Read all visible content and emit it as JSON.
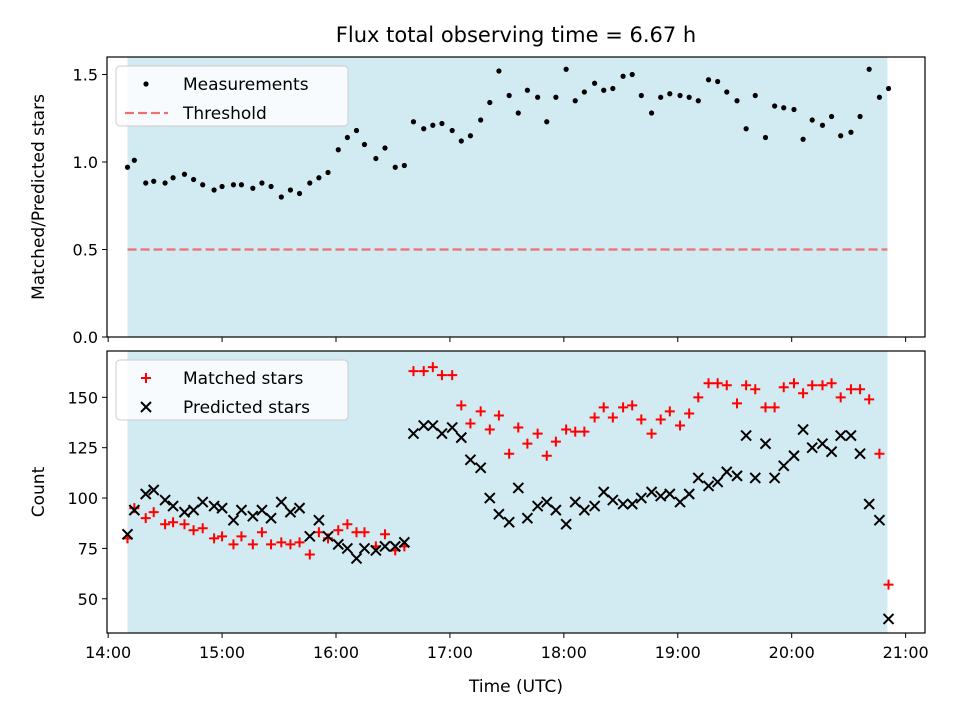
{
  "figure": {
    "title": "Flux total observing time = 6.67 h",
    "xlabel": "Time (UTC)",
    "x_unit": "hours UTC",
    "x_range": [
      13.99,
      21.17
    ],
    "x_ticks": [
      {
        "value": 14,
        "label": "14:00"
      },
      {
        "value": 15,
        "label": "15:00"
      },
      {
        "value": 16,
        "label": "16:00"
      },
      {
        "value": 17,
        "label": "17:00"
      },
      {
        "value": 18,
        "label": "18:00"
      },
      {
        "value": 19,
        "label": "19:00"
      },
      {
        "value": 20,
        "label": "20:00"
      },
      {
        "value": 21,
        "label": "21:00"
      }
    ],
    "shaded_span": {
      "start": 14.17,
      "end": 20.84,
      "color": "#add8e6"
    }
  },
  "chart_data": [
    {
      "type": "scatter",
      "ylabel": "Matched/Predicted stars",
      "ylim": [
        0.0,
        1.6
      ],
      "y_ticks": [
        "0.0",
        "0.5",
        "1.0",
        "1.5"
      ],
      "legend_placement": "upper-left",
      "series": [
        {
          "name": "Measurements",
          "marker": "dot",
          "color": "#000000",
          "points": [
            [
              14.17,
              0.97
            ],
            [
              14.23,
              1.01
            ],
            [
              14.33,
              0.88
            ],
            [
              14.4,
              0.89
            ],
            [
              14.5,
              0.88
            ],
            [
              14.57,
              0.91
            ],
            [
              14.67,
              0.93
            ],
            [
              14.75,
              0.9
            ],
            [
              14.83,
              0.87
            ],
            [
              14.93,
              0.84
            ],
            [
              15.0,
              0.86
            ],
            [
              15.1,
              0.87
            ],
            [
              15.17,
              0.87
            ],
            [
              15.27,
              0.85
            ],
            [
              15.35,
              0.88
            ],
            [
              15.43,
              0.86
            ],
            [
              15.52,
              0.8
            ],
            [
              15.6,
              0.84
            ],
            [
              15.68,
              0.82
            ],
            [
              15.77,
              0.88
            ],
            [
              15.85,
              0.91
            ],
            [
              15.93,
              0.94
            ],
            [
              16.02,
              1.07
            ],
            [
              16.1,
              1.14
            ],
            [
              16.18,
              1.18
            ],
            [
              16.25,
              1.1
            ],
            [
              16.35,
              1.02
            ],
            [
              16.43,
              1.08
            ],
            [
              16.52,
              0.97
            ],
            [
              16.6,
              0.98
            ],
            [
              16.68,
              1.23
            ],
            [
              16.77,
              1.19
            ],
            [
              16.85,
              1.21
            ],
            [
              16.93,
              1.22
            ],
            [
              17.02,
              1.18
            ],
            [
              17.1,
              1.12
            ],
            [
              17.18,
              1.15
            ],
            [
              17.27,
              1.24
            ],
            [
              17.35,
              1.34
            ],
            [
              17.43,
              1.52
            ],
            [
              17.52,
              1.38
            ],
            [
              17.6,
              1.28
            ],
            [
              17.68,
              1.41
            ],
            [
              17.77,
              1.37
            ],
            [
              17.85,
              1.23
            ],
            [
              17.93,
              1.37
            ],
            [
              18.02,
              1.53
            ],
            [
              18.1,
              1.35
            ],
            [
              18.18,
              1.4
            ],
            [
              18.27,
              1.45
            ],
            [
              18.35,
              1.41
            ],
            [
              18.43,
              1.42
            ],
            [
              18.52,
              1.49
            ],
            [
              18.6,
              1.5
            ],
            [
              18.68,
              1.38
            ],
            [
              18.77,
              1.28
            ],
            [
              18.85,
              1.37
            ],
            [
              18.93,
              1.39
            ],
            [
              19.02,
              1.38
            ],
            [
              19.1,
              1.37
            ],
            [
              19.18,
              1.35
            ],
            [
              19.27,
              1.47
            ],
            [
              19.35,
              1.46
            ],
            [
              19.43,
              1.4
            ],
            [
              19.52,
              1.35
            ],
            [
              19.6,
              1.19
            ],
            [
              19.68,
              1.38
            ],
            [
              19.77,
              1.14
            ],
            [
              19.85,
              1.32
            ],
            [
              19.93,
              1.31
            ],
            [
              20.02,
              1.3
            ],
            [
              20.1,
              1.13
            ],
            [
              20.18,
              1.24
            ],
            [
              20.27,
              1.21
            ],
            [
              20.35,
              1.26
            ],
            [
              20.43,
              1.15
            ],
            [
              20.52,
              1.17
            ],
            [
              20.6,
              1.26
            ],
            [
              20.68,
              1.53
            ],
            [
              20.77,
              1.37
            ],
            [
              20.85,
              1.42
            ]
          ]
        },
        {
          "name": "Threshold",
          "marker": "dashed-line",
          "color": "#f07070",
          "points": [
            [
              14.17,
              0.5
            ],
            [
              20.84,
              0.5
            ]
          ]
        }
      ]
    },
    {
      "type": "scatter",
      "ylabel": "Count",
      "ylim": [
        33,
        173
      ],
      "y_ticks": [
        "50",
        "75",
        "100",
        "125",
        "150"
      ],
      "legend_placement": "upper-left",
      "series": [
        {
          "name": "Matched stars",
          "marker": "plus",
          "color": "#ff0000",
          "points": [
            [
              14.17,
              80
            ],
            [
              14.23,
              95
            ],
            [
              14.33,
              90
            ],
            [
              14.4,
              93
            ],
            [
              14.5,
              87
            ],
            [
              14.57,
              88
            ],
            [
              14.67,
              87
            ],
            [
              14.75,
              84
            ],
            [
              14.83,
              85
            ],
            [
              14.93,
              80
            ],
            [
              15.0,
              81
            ],
            [
              15.1,
              77
            ],
            [
              15.17,
              81
            ],
            [
              15.27,
              77
            ],
            [
              15.35,
              83
            ],
            [
              15.43,
              77
            ],
            [
              15.52,
              78
            ],
            [
              15.6,
              77
            ],
            [
              15.68,
              78
            ],
            [
              15.77,
              72
            ],
            [
              15.85,
              83
            ],
            [
              15.93,
              80
            ],
            [
              16.02,
              84
            ],
            [
              16.1,
              87
            ],
            [
              16.18,
              83
            ],
            [
              16.25,
              83
            ],
            [
              16.35,
              76
            ],
            [
              16.43,
              82
            ],
            [
              16.52,
              74
            ],
            [
              16.6,
              76
            ],
            [
              16.68,
              163
            ],
            [
              16.77,
              163
            ],
            [
              16.85,
              165
            ],
            [
              16.93,
              161
            ],
            [
              17.02,
              161
            ],
            [
              17.1,
              146
            ],
            [
              17.18,
              137
            ],
            [
              17.27,
              143
            ],
            [
              17.35,
              134
            ],
            [
              17.43,
              141
            ],
            [
              17.52,
              122
            ],
            [
              17.6,
              135
            ],
            [
              17.68,
              127
            ],
            [
              17.77,
              132
            ],
            [
              17.85,
              121
            ],
            [
              17.93,
              128
            ],
            [
              18.02,
              134
            ],
            [
              18.1,
              133
            ],
            [
              18.18,
              133
            ],
            [
              18.27,
              140
            ],
            [
              18.35,
              145
            ],
            [
              18.43,
              140
            ],
            [
              18.52,
              145
            ],
            [
              18.6,
              146
            ],
            [
              18.68,
              139
            ],
            [
              18.77,
              132
            ],
            [
              18.85,
              139
            ],
            [
              18.93,
              143
            ],
            [
              19.02,
              136
            ],
            [
              19.1,
              142
            ],
            [
              19.18,
              150
            ],
            [
              19.27,
              157
            ],
            [
              19.35,
              157
            ],
            [
              19.43,
              156
            ],
            [
              19.52,
              147
            ],
            [
              19.6,
              156
            ],
            [
              19.68,
              154
            ],
            [
              19.77,
              145
            ],
            [
              19.85,
              145
            ],
            [
              19.93,
              155
            ],
            [
              20.02,
              157
            ],
            [
              20.1,
              152
            ],
            [
              20.18,
              156
            ],
            [
              20.27,
              156
            ],
            [
              20.35,
              157
            ],
            [
              20.43,
              150
            ],
            [
              20.52,
              154
            ],
            [
              20.6,
              154
            ],
            [
              20.68,
              149
            ],
            [
              20.77,
              122
            ],
            [
              20.85,
              57
            ]
          ]
        },
        {
          "name": "Predicted stars",
          "marker": "x",
          "color": "#000000",
          "points": [
            [
              14.17,
              82
            ],
            [
              14.23,
              94
            ],
            [
              14.33,
              102
            ],
            [
              14.4,
              104
            ],
            [
              14.5,
              99
            ],
            [
              14.57,
              96
            ],
            [
              14.67,
              93
            ],
            [
              14.75,
              94
            ],
            [
              14.83,
              98
            ],
            [
              14.93,
              96
            ],
            [
              15.0,
              95
            ],
            [
              15.1,
              89
            ],
            [
              15.17,
              94
            ],
            [
              15.27,
              91
            ],
            [
              15.35,
              94
            ],
            [
              15.43,
              90
            ],
            [
              15.52,
              98
            ],
            [
              15.6,
              93
            ],
            [
              15.68,
              95
            ],
            [
              15.77,
              81
            ],
            [
              15.85,
              89
            ],
            [
              15.93,
              81
            ],
            [
              16.02,
              77
            ],
            [
              16.1,
              75
            ],
            [
              16.18,
              70
            ],
            [
              16.25,
              75
            ],
            [
              16.35,
              74
            ],
            [
              16.43,
              76
            ],
            [
              16.52,
              76
            ],
            [
              16.6,
              78
            ],
            [
              16.68,
              132
            ],
            [
              16.77,
              136
            ],
            [
              16.85,
              136
            ],
            [
              16.93,
              132
            ],
            [
              17.02,
              135
            ],
            [
              17.1,
              130
            ],
            [
              17.18,
              119
            ],
            [
              17.27,
              115
            ],
            [
              17.35,
              100
            ],
            [
              17.43,
              92
            ],
            [
              17.52,
              88
            ],
            [
              17.6,
              105
            ],
            [
              17.68,
              90
            ],
            [
              17.77,
              96
            ],
            [
              17.85,
              98
            ],
            [
              17.93,
              94
            ],
            [
              18.02,
              87
            ],
            [
              18.1,
              98
            ],
            [
              18.18,
              94
            ],
            [
              18.27,
              96
            ],
            [
              18.35,
              103
            ],
            [
              18.43,
              99
            ],
            [
              18.52,
              97
            ],
            [
              18.6,
              97
            ],
            [
              18.68,
              100
            ],
            [
              18.77,
              103
            ],
            [
              18.85,
              101
            ],
            [
              18.93,
              102
            ],
            [
              19.02,
              98
            ],
            [
              19.1,
              102
            ],
            [
              19.18,
              110
            ],
            [
              19.27,
              106
            ],
            [
              19.35,
              108
            ],
            [
              19.43,
              113
            ],
            [
              19.52,
              111
            ],
            [
              19.6,
              131
            ],
            [
              19.68,
              110
            ],
            [
              19.77,
              127
            ],
            [
              19.85,
              110
            ],
            [
              19.93,
              116
            ],
            [
              20.02,
              121
            ],
            [
              20.1,
              134
            ],
            [
              20.18,
              125
            ],
            [
              20.27,
              127
            ],
            [
              20.35,
              123
            ],
            [
              20.43,
              131
            ],
            [
              20.52,
              131
            ],
            [
              20.6,
              122
            ],
            [
              20.68,
              97
            ],
            [
              20.77,
              89
            ],
            [
              20.85,
              40
            ]
          ]
        }
      ]
    }
  ]
}
